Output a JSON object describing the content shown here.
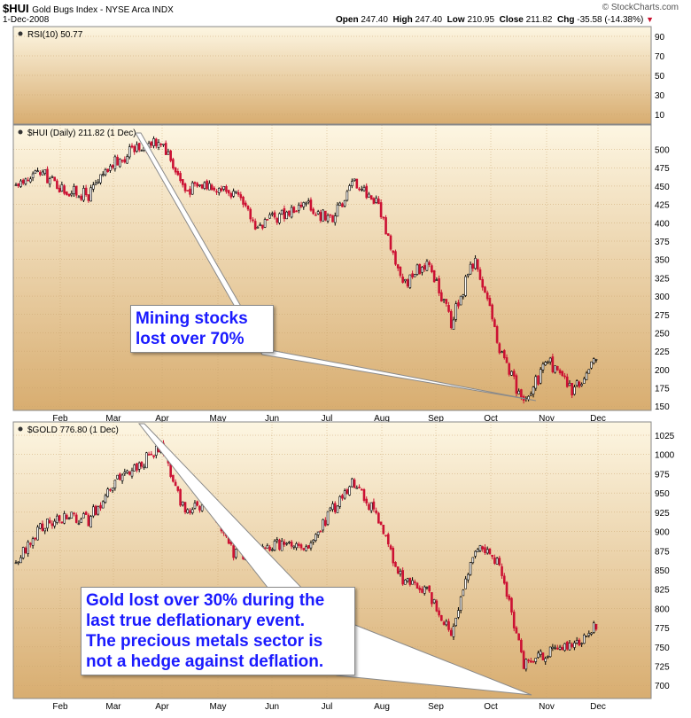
{
  "header": {
    "symbol": "$HUI",
    "name": "Gold Bugs Index - NYSE Arca INDX",
    "date": "1-Dec-2008",
    "watermark": "© StockCharts.com",
    "open_label": "Open",
    "open": "247.40",
    "high_label": "High",
    "high": "247.40",
    "low_label": "Low",
    "low": "210.95",
    "close_label": "Close",
    "close": "211.82",
    "chg_label": "Chg",
    "chg": "-35.58 (-14.38%)"
  },
  "colors": {
    "up": "#000000",
    "down": "#cc1133",
    "panel_top": "#fdf6e2",
    "panel_bottom": "#d8ad70"
  },
  "annotations": [
    {
      "id": "hui-note",
      "lines": [
        "Mining stocks",
        "lost over 70%"
      ]
    },
    {
      "id": "gold-note",
      "lines": [
        "Gold lost over 30% during the",
        "last true deflationary event.",
        "The precious metals sector is",
        "not a hedge against deflation."
      ]
    }
  ],
  "chart_data": [
    {
      "type": "line",
      "panel": "rsi",
      "title": "RSI(10) 50.77",
      "y_ticks": [
        10,
        30,
        50,
        70,
        90
      ],
      "ylim": [
        0,
        100
      ],
      "series": []
    },
    {
      "type": "candlestick",
      "panel": "hui",
      "title": "$HUI (Daily) 211.82 (1 Dec)",
      "x_labels": [
        "Feb",
        "Mar",
        "Apr",
        "May",
        "Jun",
        "Jul",
        "Aug",
        "Sep",
        "Oct",
        "Nov",
        "Dec"
      ],
      "y_ticks": [
        150,
        175,
        200,
        225,
        250,
        275,
        300,
        325,
        350,
        375,
        400,
        425,
        450,
        475,
        500
      ],
      "ylim": [
        143,
        520
      ],
      "x": [
        "Jan 2",
        "Jan 15",
        "Jan 31",
        "Feb 15",
        "Feb 29",
        "Mar 10",
        "Mar 17",
        "Mar 31",
        "Apr 15",
        "Apr 30",
        "May 15",
        "May 30",
        "Jun 15",
        "Jun 30",
        "Jul 15",
        "Jul 31",
        "Aug 15",
        "Aug 29",
        "Sep 12",
        "Sep 26",
        "Oct 10",
        "Oct 24",
        "Nov 7",
        "Nov 21",
        "Dec 1"
      ],
      "series": [
        {
          "values": [
            450,
            470,
            445,
            438,
            480,
            502,
            515,
            445,
            455,
            440,
            395,
            412,
            425,
            402,
            458,
            426,
            315,
            348,
            265,
            355,
            230,
            152,
            212,
            172,
            211.82
          ]
        }
      ]
    },
    {
      "type": "candlestick",
      "panel": "gold",
      "title": "$GOLD 776.80 (1 Dec)",
      "x_labels": [
        "Feb",
        "Mar",
        "Apr",
        "May",
        "Jun",
        "Jul",
        "Aug",
        "Sep",
        "Oct",
        "Nov",
        "Dec"
      ],
      "y_ticks": [
        700,
        725,
        750,
        775,
        800,
        825,
        850,
        875,
        900,
        925,
        950,
        975,
        1000,
        1025
      ],
      "ylim": [
        683,
        1040
      ],
      "x": [
        "Jan 2",
        "Jan 15",
        "Jan 31",
        "Feb 15",
        "Feb 29",
        "Mar 10",
        "Mar 17",
        "Mar 31",
        "Apr 15",
        "Apr 30",
        "May 15",
        "May 30",
        "Jun 15",
        "Jun 30",
        "Jul 15",
        "Jul 31",
        "Aug 15",
        "Aug 29",
        "Sep 12",
        "Sep 26",
        "Oct 10",
        "Oct 24",
        "Nov 7",
        "Nov 21",
        "Dec 1"
      ],
      "series": [
        {
          "values": [
            860,
            905,
            920,
            915,
            960,
            985,
            1010,
            925,
            940,
            870,
            875,
            885,
            875,
            925,
            965,
            915,
            835,
            825,
            770,
            880,
            860,
            725,
            745,
            750,
            776.8
          ]
        }
      ]
    }
  ]
}
